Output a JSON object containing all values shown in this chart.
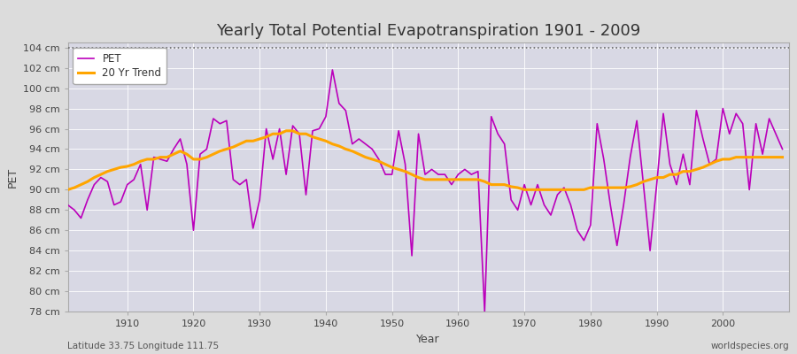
{
  "title": "Yearly Total Potential Evapotranspiration 1901 - 2009",
  "xlabel": "Year",
  "ylabel": "PET",
  "footnote_left": "Latitude 33.75 Longitude 111.75",
  "footnote_right": "worldspecies.org",
  "ylim": [
    78,
    104.5
  ],
  "years": [
    1901,
    1902,
    1903,
    1904,
    1905,
    1906,
    1907,
    1908,
    1909,
    1910,
    1911,
    1912,
    1913,
    1914,
    1915,
    1916,
    1917,
    1918,
    1919,
    1920,
    1921,
    1922,
    1923,
    1924,
    1925,
    1926,
    1927,
    1928,
    1929,
    1930,
    1931,
    1932,
    1933,
    1934,
    1935,
    1936,
    1937,
    1938,
    1939,
    1940,
    1941,
    1942,
    1943,
    1944,
    1945,
    1946,
    1947,
    1948,
    1949,
    1950,
    1951,
    1952,
    1953,
    1954,
    1955,
    1956,
    1957,
    1958,
    1959,
    1960,
    1961,
    1962,
    1963,
    1964,
    1965,
    1966,
    1967,
    1968,
    1969,
    1970,
    1971,
    1972,
    1973,
    1974,
    1975,
    1976,
    1977,
    1978,
    1979,
    1980,
    1981,
    1982,
    1983,
    1984,
    1985,
    1986,
    1987,
    1988,
    1989,
    1990,
    1991,
    1992,
    1993,
    1994,
    1995,
    1996,
    1997,
    1998,
    1999,
    2000,
    2001,
    2002,
    2003,
    2004,
    2005,
    2006,
    2007,
    2008,
    2009
  ],
  "pet": [
    88.5,
    88.0,
    87.2,
    89.0,
    90.5,
    91.2,
    90.8,
    88.5,
    88.8,
    90.5,
    91.0,
    92.5,
    88.0,
    93.2,
    93.0,
    92.8,
    94.0,
    95.0,
    92.5,
    86.0,
    93.5,
    94.0,
    97.0,
    96.5,
    96.8,
    91.0,
    90.5,
    91.0,
    86.2,
    89.0,
    96.0,
    93.0,
    96.0,
    91.5,
    96.3,
    95.5,
    89.5,
    95.8,
    96.0,
    97.2,
    101.8,
    98.5,
    97.8,
    94.5,
    95.0,
    94.5,
    94.0,
    93.0,
    91.5,
    91.5,
    95.8,
    92.5,
    83.5,
    95.5,
    91.5,
    92.0,
    91.5,
    91.5,
    90.5,
    91.5,
    92.0,
    91.5,
    91.8,
    78.0,
    97.2,
    95.5,
    94.5,
    89.0,
    88.0,
    90.5,
    88.5,
    90.5,
    88.5,
    87.5,
    89.5,
    90.2,
    88.5,
    86.0,
    85.0,
    86.5,
    96.5,
    93.0,
    88.5,
    84.5,
    88.5,
    93.2,
    96.8,
    90.5,
    84.0,
    90.5,
    97.5,
    92.5,
    90.5,
    93.5,
    90.5,
    97.8,
    95.0,
    92.5,
    93.0,
    98.0,
    95.5,
    97.5,
    96.5,
    90.0,
    96.5,
    93.5,
    97.0,
    95.5,
    94.0
  ],
  "trend": [
    90.0,
    90.2,
    90.5,
    90.8,
    91.2,
    91.5,
    91.8,
    92.0,
    92.2,
    92.3,
    92.5,
    92.8,
    93.0,
    93.0,
    93.2,
    93.2,
    93.5,
    93.8,
    93.5,
    93.0,
    93.0,
    93.2,
    93.5,
    93.8,
    94.0,
    94.2,
    94.5,
    94.8,
    94.8,
    95.0,
    95.2,
    95.5,
    95.5,
    95.8,
    95.8,
    95.5,
    95.5,
    95.2,
    95.0,
    94.8,
    94.5,
    94.3,
    94.0,
    93.8,
    93.5,
    93.2,
    93.0,
    92.8,
    92.5,
    92.2,
    92.0,
    91.8,
    91.5,
    91.2,
    91.0,
    91.0,
    91.0,
    91.0,
    91.0,
    91.0,
    91.0,
    91.0,
    91.0,
    90.8,
    90.5,
    90.5,
    90.5,
    90.3,
    90.2,
    90.0,
    90.0,
    90.0,
    90.0,
    90.0,
    90.0,
    90.0,
    90.0,
    90.0,
    90.0,
    90.2,
    90.2,
    90.2,
    90.2,
    90.2,
    90.2,
    90.3,
    90.5,
    90.8,
    91.0,
    91.2,
    91.2,
    91.5,
    91.5,
    91.8,
    91.8,
    92.0,
    92.2,
    92.5,
    92.8,
    93.0,
    93.0,
    93.2,
    93.2,
    93.2,
    93.2,
    93.2,
    93.2,
    93.2,
    93.2
  ],
  "pet_color": "#BB00BB",
  "trend_color": "#FFA500",
  "bg_color": "#DCDCDC",
  "plot_bg_color": "#D8D8E4",
  "grid_color": "#FFFFFF",
  "dotted_line_color": "#666666",
  "title_fontsize": 13,
  "tick_fontsize": 8,
  "label_fontsize": 9,
  "legend_fontsize": 8.5,
  "footnote_fontsize": 7.5
}
